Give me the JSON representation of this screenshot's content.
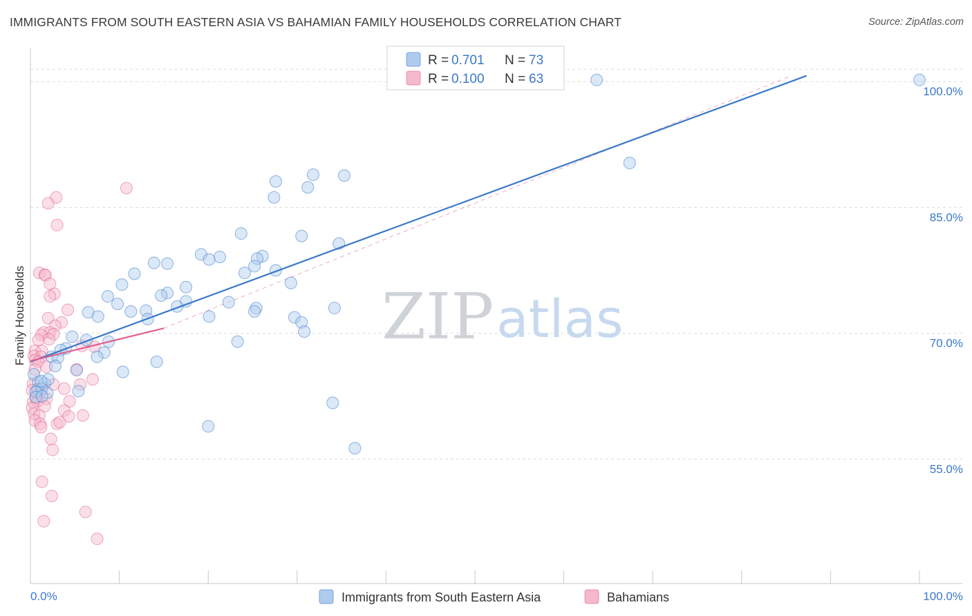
{
  "title": "IMMIGRANTS FROM SOUTH EASTERN ASIA VS BAHAMIAN FAMILY HOUSEHOLDS CORRELATION CHART",
  "source": "Source: ZipAtlas.com",
  "colors": {
    "blue": "#3a78c9",
    "blue_fill": "#aecbee",
    "pink": "#e0608f",
    "pink_fill": "#f6b8cb",
    "grid": "#dcdcdc"
  },
  "chart_data": {
    "type": "scatter",
    "title": "IMMIGRANTS FROM SOUTH EASTERN ASIA VS BAHAMIAN FAMILY HOUSEHOLDS CORRELATION CHART",
    "xlabel": "",
    "ylabel": "Family Households",
    "xlim": [
      0,
      100
    ],
    "ylim": [
      40,
      101.5
    ],
    "y_ticks": [
      55,
      70,
      85,
      100
    ],
    "y_tick_labels": [
      "55.0%",
      "70.0%",
      "85.0%",
      "100.0%"
    ],
    "x_tick_labels": [
      "0.0%",
      "100.0%"
    ],
    "grid": true,
    "watermark": {
      "part1": "ZIP",
      "part2": "atlas"
    },
    "legend_stats": [
      {
        "r_label": "R =",
        "r_value": "0.701",
        "n_label": "N =",
        "n_value": "73"
      },
      {
        "r_label": "R =",
        "r_value": "0.100",
        "n_label": "N =",
        "n_value": "63"
      }
    ],
    "series": [
      {
        "name": "Immigrants from South Eastern Asia",
        "color": "#3a78c9",
        "trend": {
          "x": [
            0,
            87.3
          ],
          "y": [
            66.6,
            100.7
          ]
        },
        "points": [
          [
            63.7,
            100.2
          ],
          [
            100,
            100.2
          ],
          [
            67.4,
            90.3
          ],
          [
            31.8,
            88.9
          ],
          [
            35.3,
            88.8
          ],
          [
            27.6,
            88.1
          ],
          [
            31.2,
            87.4
          ],
          [
            27.4,
            86.2
          ],
          [
            23.7,
            81.9
          ],
          [
            30.5,
            81.6
          ],
          [
            34.7,
            80.7
          ],
          [
            19.2,
            79.4
          ],
          [
            21.3,
            79.1
          ],
          [
            26.1,
            79.2
          ],
          [
            25.5,
            78.9
          ],
          [
            20.1,
            78.8
          ],
          [
            13.9,
            78.4
          ],
          [
            15.4,
            78.3
          ],
          [
            25.2,
            78.0
          ],
          [
            27.6,
            77.5
          ],
          [
            24.1,
            77.2
          ],
          [
            11.7,
            77.1
          ],
          [
            29.3,
            76.0
          ],
          [
            10.3,
            75.8
          ],
          [
            17.5,
            75.5
          ],
          [
            15.4,
            74.8
          ],
          [
            14.7,
            74.5
          ],
          [
            8.7,
            74.4
          ],
          [
            17.5,
            73.8
          ],
          [
            22.3,
            73.7
          ],
          [
            16.5,
            73.2
          ],
          [
            9.8,
            73.5
          ],
          [
            25.4,
            73.0
          ],
          [
            25.2,
            72.6
          ],
          [
            34.2,
            73.0
          ],
          [
            13.0,
            72.7
          ],
          [
            11.3,
            72.6
          ],
          [
            6.5,
            72.5
          ],
          [
            7.6,
            72.0
          ],
          [
            20.1,
            72.0
          ],
          [
            29.7,
            71.9
          ],
          [
            13.2,
            71.7
          ],
          [
            30.5,
            71.3
          ],
          [
            30.8,
            70.2
          ],
          [
            4.7,
            69.6
          ],
          [
            6.3,
            69.2
          ],
          [
            8.8,
            69.0
          ],
          [
            23.3,
            69.0
          ],
          [
            4.0,
            68.2
          ],
          [
            3.4,
            68.0
          ],
          [
            8.3,
            67.7
          ],
          [
            2.4,
            67.2
          ],
          [
            3.1,
            67.1
          ],
          [
            7.5,
            67.2
          ],
          [
            14.2,
            66.6
          ],
          [
            2.8,
            66.1
          ],
          [
            10.4,
            65.4
          ],
          [
            5.2,
            65.6
          ],
          [
            0.4,
            65.1
          ],
          [
            0.9,
            64.2
          ],
          [
            1.6,
            64.0
          ],
          [
            2.0,
            64.5
          ],
          [
            0.8,
            63.3
          ],
          [
            1.3,
            63.4
          ],
          [
            0.6,
            63.0
          ],
          [
            1.9,
            62.9
          ],
          [
            5.4,
            63.1
          ],
          [
            0.6,
            62.4
          ],
          [
            1.3,
            62.5
          ],
          [
            34.0,
            61.7
          ],
          [
            20.0,
            58.9
          ],
          [
            36.5,
            56.3
          ],
          [
            1.2,
            64.3
          ]
        ]
      },
      {
        "name": "Bahamians",
        "color": "#e0608f",
        "trend": {
          "x": [
            0,
            15
          ],
          "y": [
            66.7,
            70.6
          ]
        },
        "points": [
          [
            10.8,
            87.3
          ],
          [
            2.9,
            86.2
          ],
          [
            2.0,
            85.5
          ],
          [
            3.0,
            82.9
          ],
          [
            1.0,
            77.2
          ],
          [
            1.6,
            77.0
          ],
          [
            1.7,
            76.9
          ],
          [
            2.2,
            75.9
          ],
          [
            2.7,
            74.7
          ],
          [
            2.2,
            74.4
          ],
          [
            4.2,
            72.8
          ],
          [
            2.0,
            71.8
          ],
          [
            3.5,
            71.3
          ],
          [
            2.8,
            70.9
          ],
          [
            1.5,
            70.1
          ],
          [
            2.2,
            70.1
          ],
          [
            1.2,
            69.8
          ],
          [
            2.6,
            69.9
          ],
          [
            0.9,
            69.2
          ],
          [
            2.1,
            69.3
          ],
          [
            5.8,
            68.5
          ],
          [
            7.2,
            68.4
          ],
          [
            0.5,
            67.9
          ],
          [
            1.3,
            67.9
          ],
          [
            0.4,
            67.3
          ],
          [
            1.2,
            67.2
          ],
          [
            0.5,
            66.8
          ],
          [
            0.9,
            66.6
          ],
          [
            1.8,
            66.0
          ],
          [
            0.5,
            65.7
          ],
          [
            5.2,
            65.7
          ],
          [
            7.0,
            64.5
          ],
          [
            0.3,
            64.0
          ],
          [
            2.6,
            63.9
          ],
          [
            5.6,
            63.9
          ],
          [
            0.2,
            63.2
          ],
          [
            1.2,
            63.4
          ],
          [
            3.8,
            63.4
          ],
          [
            1.1,
            62.8
          ],
          [
            0.6,
            62.3
          ],
          [
            1.8,
            62.2
          ],
          [
            0.3,
            61.8
          ],
          [
            0.8,
            61.9
          ],
          [
            4.4,
            61.9
          ],
          [
            0.2,
            61.1
          ],
          [
            1.6,
            61.3
          ],
          [
            3.8,
            60.8
          ],
          [
            0.4,
            60.4
          ],
          [
            1.0,
            60.2
          ],
          [
            4.3,
            60.1
          ],
          [
            5.9,
            60.2
          ],
          [
            0.5,
            59.6
          ],
          [
            1.1,
            59.2
          ],
          [
            3.0,
            59.2
          ],
          [
            1.2,
            58.8
          ],
          [
            2.3,
            57.4
          ],
          [
            2.5,
            56.1
          ],
          [
            1.3,
            52.3
          ],
          [
            2.4,
            50.6
          ],
          [
            6.2,
            48.7
          ],
          [
            1.5,
            47.6
          ],
          [
            7.5,
            45.5
          ],
          [
            3.3,
            59.4
          ]
        ]
      }
    ]
  }
}
